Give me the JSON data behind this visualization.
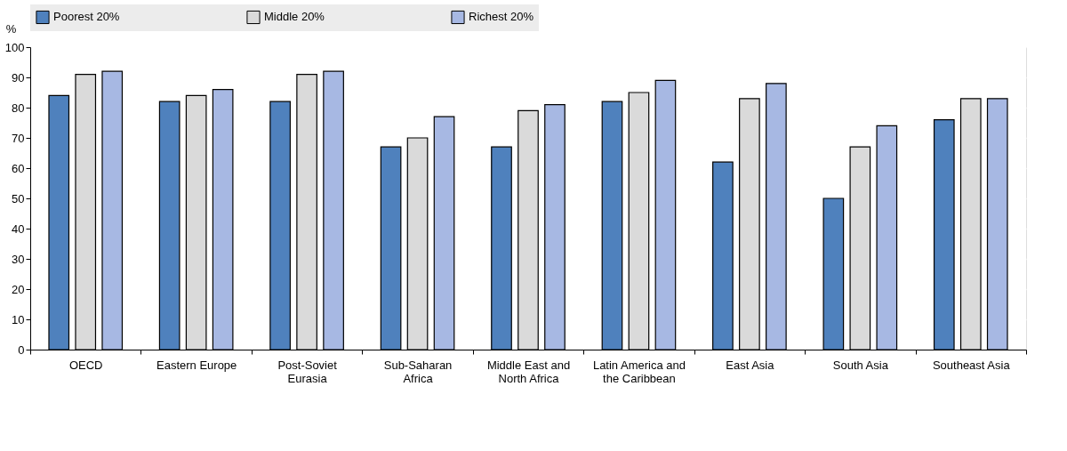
{
  "chart_data": {
    "type": "bar",
    "ylabel": "%",
    "categories": [
      "OECD",
      "Eastern Europe",
      "Post-Soviet Eurasia",
      "Sub-Saharan Africa",
      "Middle East and North Africa",
      "Latin America and the Caribbean",
      "East Asia",
      "South Asia",
      "Southeast Asia"
    ],
    "series": [
      {
        "name": "Poorest 20%",
        "color": "#4f81bd",
        "values": [
          84,
          82,
          82,
          67,
          67,
          82,
          62,
          50,
          76
        ]
      },
      {
        "name": "Middle 20%",
        "color": "#dadada",
        "values": [
          91,
          84,
          91,
          70,
          79,
          85,
          83,
          67,
          83
        ]
      },
      {
        "name": "Richest 20%",
        "color": "#a7b8e3",
        "values": [
          92,
          86,
          92,
          77,
          81,
          89,
          88,
          74,
          83
        ]
      }
    ],
    "ylim": [
      0,
      100
    ],
    "yticks": [
      0,
      10,
      20,
      30,
      40,
      50,
      60,
      70,
      80,
      90,
      100
    ],
    "grid": "y",
    "legend": "top"
  }
}
